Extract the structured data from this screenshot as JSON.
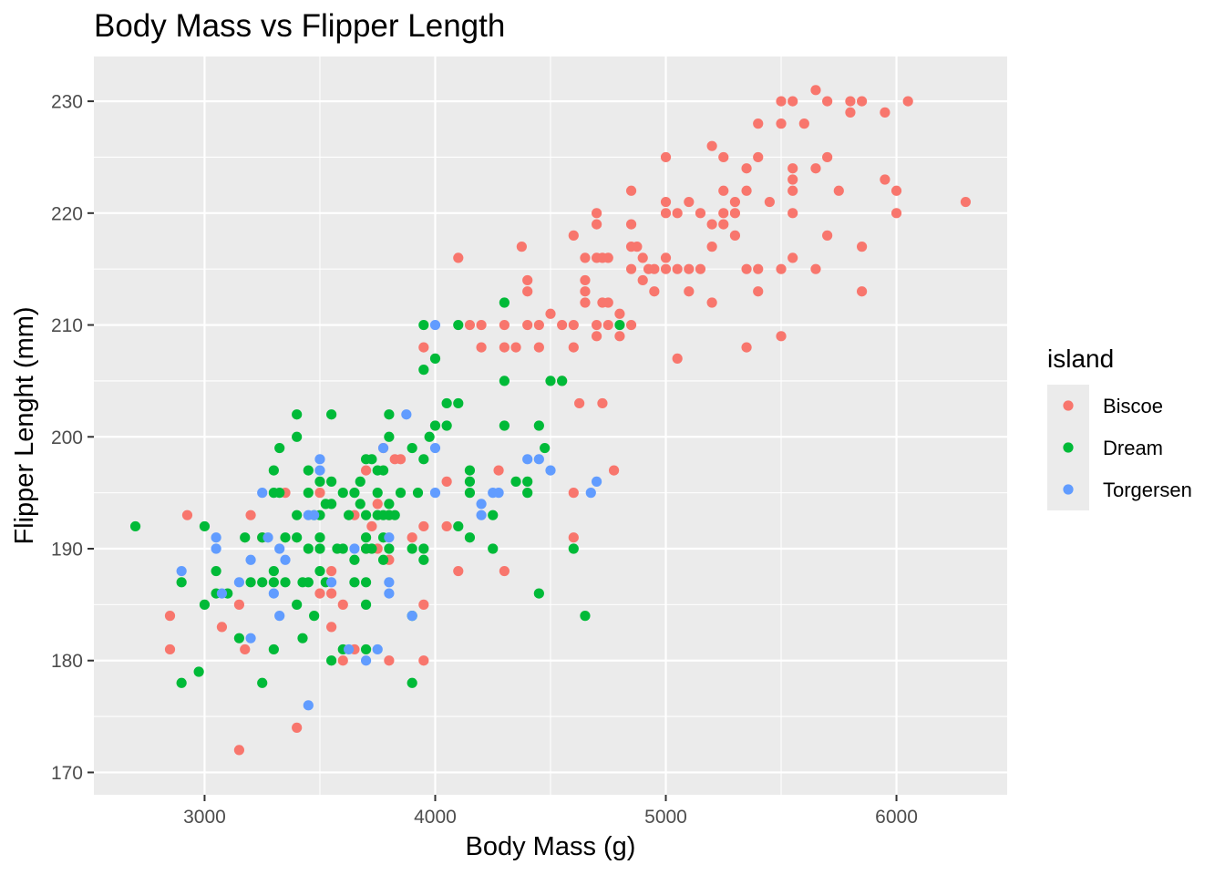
{
  "chart_data": {
    "type": "scatter",
    "title": "Body Mass vs Flipper Length",
    "xlabel": "Body Mass (g)",
    "ylabel": "Flipper Lenght (mm)",
    "xlim": [
      2520,
      6480
    ],
    "ylim": [
      168,
      234
    ],
    "xticks": [
      3000,
      4000,
      5000,
      6000
    ],
    "yticks": [
      170,
      180,
      190,
      200,
      210,
      220,
      230
    ],
    "grid": true,
    "legend": {
      "title": "island",
      "position": "right"
    },
    "series": [
      {
        "name": "Biscoe",
        "color": "#F8766D",
        "points": [
          [
            6300,
            221
          ],
          [
            6050,
            230
          ],
          [
            6000,
            222
          ],
          [
            6000,
            220
          ],
          [
            5950,
            229
          ],
          [
            5950,
            223
          ],
          [
            5850,
            230
          ],
          [
            5850,
            217
          ],
          [
            5850,
            213
          ],
          [
            5800,
            230
          ],
          [
            5800,
            229
          ],
          [
            5750,
            222
          ],
          [
            5700,
            230
          ],
          [
            5700,
            225
          ],
          [
            5700,
            218
          ],
          [
            5650,
            231
          ],
          [
            5650,
            224
          ],
          [
            5650,
            215
          ],
          [
            5600,
            228
          ],
          [
            5550,
            230
          ],
          [
            5550,
            224
          ],
          [
            5550,
            223
          ],
          [
            5550,
            222
          ],
          [
            5550,
            220
          ],
          [
            5550,
            216
          ],
          [
            5500,
            230
          ],
          [
            5500,
            228
          ],
          [
            5500,
            215
          ],
          [
            5500,
            209
          ],
          [
            5450,
            221
          ],
          [
            5400,
            228
          ],
          [
            5400,
            225
          ],
          [
            5400,
            215
          ],
          [
            5400,
            213
          ],
          [
            5350,
            224
          ],
          [
            5350,
            222
          ],
          [
            5350,
            215
          ],
          [
            5350,
            208
          ],
          [
            5300,
            221
          ],
          [
            5300,
            220
          ],
          [
            5300,
            218
          ],
          [
            5250,
            225
          ],
          [
            5250,
            222
          ],
          [
            5250,
            220
          ],
          [
            5250,
            219
          ],
          [
            5200,
            226
          ],
          [
            5200,
            219
          ],
          [
            5200,
            217
          ],
          [
            5200,
            212
          ],
          [
            5150,
            220
          ],
          [
            5150,
            215
          ],
          [
            5100,
            221
          ],
          [
            5100,
            215
          ],
          [
            5100,
            213
          ],
          [
            5050,
            220
          ],
          [
            5050,
            215
          ],
          [
            5050,
            207
          ],
          [
            5000,
            225
          ],
          [
            5000,
            221
          ],
          [
            5000,
            220
          ],
          [
            5000,
            216
          ],
          [
            5000,
            215
          ],
          [
            4950,
            215
          ],
          [
            4950,
            213
          ],
          [
            4925,
            215
          ],
          [
            4900,
            216
          ],
          [
            4900,
            214
          ],
          [
            4875,
            217
          ],
          [
            4850,
            222
          ],
          [
            4850,
            219
          ],
          [
            4850,
            217
          ],
          [
            4850,
            215
          ],
          [
            4850,
            210
          ],
          [
            4800,
            211
          ],
          [
            4800,
            209
          ],
          [
            4750,
            216
          ],
          [
            4750,
            212
          ],
          [
            4750,
            210
          ],
          [
            4725,
            216
          ],
          [
            4725,
            212
          ],
          [
            4725,
            203
          ],
          [
            4700,
            220
          ],
          [
            4700,
            219
          ],
          [
            4700,
            216
          ],
          [
            4700,
            210
          ],
          [
            4700,
            209
          ],
          [
            4650,
            216
          ],
          [
            4650,
            214
          ],
          [
            4650,
            213
          ],
          [
            4650,
            212
          ],
          [
            4625,
            203
          ],
          [
            4600,
            218
          ],
          [
            4600,
            210
          ],
          [
            4600,
            208
          ],
          [
            4600,
            191
          ],
          [
            4550,
            210
          ],
          [
            4500,
            211
          ],
          [
            4450,
            210
          ],
          [
            4450,
            208
          ],
          [
            4400,
            214
          ],
          [
            4400,
            213
          ],
          [
            4400,
            210
          ],
          [
            4375,
            217
          ],
          [
            4350,
            208
          ],
          [
            4300,
            210
          ],
          [
            4300,
            208
          ],
          [
            4300,
            188
          ],
          [
            4275,
            197
          ],
          [
            4200,
            210
          ],
          [
            4200,
            208
          ],
          [
            4150,
            210
          ],
          [
            4100,
            216
          ],
          [
            4100,
            188
          ],
          [
            4050,
            196
          ],
          [
            4050,
            192
          ],
          [
            3950,
            208
          ],
          [
            3950,
            192
          ],
          [
            3950,
            185
          ],
          [
            3950,
            180
          ],
          [
            3900,
            191
          ],
          [
            3850,
            198
          ],
          [
            3800,
            189
          ],
          [
            3800,
            180
          ],
          [
            3775,
            199
          ],
          [
            3750,
            194
          ],
          [
            3725,
            192
          ],
          [
            3700,
            190
          ],
          [
            3650,
            181
          ],
          [
            3600,
            185
          ],
          [
            3600,
            180
          ],
          [
            3550,
            188
          ],
          [
            3550,
            186
          ],
          [
            3550,
            183
          ],
          [
            3500,
            186
          ],
          [
            3350,
            195
          ],
          [
            3250,
            191
          ],
          [
            3200,
            193
          ],
          [
            3175,
            181
          ],
          [
            3150,
            185
          ],
          [
            3150,
            172
          ],
          [
            3075,
            183
          ],
          [
            2925,
            193
          ],
          [
            2850,
            184
          ],
          [
            2850,
            181
          ],
          [
            3400,
            174
          ],
          [
            4775,
            197
          ],
          [
            4550,
            205
          ],
          [
            4600,
            195
          ],
          [
            3825,
            198
          ],
          [
            3650,
            193
          ],
          [
            3800,
            193
          ],
          [
            3700,
            197
          ],
          [
            3750,
            190
          ],
          [
            3500,
            195
          ]
        ]
      },
      {
        "name": "Dream",
        "color": "#00BA38",
        "points": [
          [
            2700,
            192
          ],
          [
            2900,
            187
          ],
          [
            2900,
            178
          ],
          [
            2975,
            179
          ],
          [
            3000,
            192
          ],
          [
            3000,
            185
          ],
          [
            3050,
            188
          ],
          [
            3050,
            186
          ],
          [
            3100,
            186
          ],
          [
            3150,
            182
          ],
          [
            3175,
            191
          ],
          [
            3200,
            187
          ],
          [
            3250,
            191
          ],
          [
            3250,
            187
          ],
          [
            3250,
            178
          ],
          [
            3300,
            197
          ],
          [
            3300,
            195
          ],
          [
            3300,
            188
          ],
          [
            3300,
            187
          ],
          [
            3300,
            181
          ],
          [
            3325,
            199
          ],
          [
            3325,
            195
          ],
          [
            3350,
            191
          ],
          [
            3350,
            187
          ],
          [
            3400,
            202
          ],
          [
            3400,
            200
          ],
          [
            3400,
            193
          ],
          [
            3400,
            191
          ],
          [
            3400,
            185
          ],
          [
            3425,
            187
          ],
          [
            3425,
            182
          ],
          [
            3450,
            197
          ],
          [
            3450,
            195
          ],
          [
            3450,
            190
          ],
          [
            3450,
            187
          ],
          [
            3475,
            193
          ],
          [
            3475,
            184
          ],
          [
            3500,
            196
          ],
          [
            3500,
            193
          ],
          [
            3500,
            191
          ],
          [
            3500,
            190
          ],
          [
            3500,
            188
          ],
          [
            3525,
            194
          ],
          [
            3525,
            187
          ],
          [
            3550,
            202
          ],
          [
            3550,
            196
          ],
          [
            3550,
            194
          ],
          [
            3550,
            180
          ],
          [
            3575,
            190
          ],
          [
            3600,
            195
          ],
          [
            3600,
            190
          ],
          [
            3600,
            181
          ],
          [
            3625,
            193
          ],
          [
            3650,
            195
          ],
          [
            3650,
            189
          ],
          [
            3650,
            187
          ],
          [
            3675,
            194
          ],
          [
            3675,
            196
          ],
          [
            3700,
            198
          ],
          [
            3700,
            193
          ],
          [
            3700,
            191
          ],
          [
            3700,
            190
          ],
          [
            3700,
            187
          ],
          [
            3700,
            185
          ],
          [
            3700,
            181
          ],
          [
            3725,
            198
          ],
          [
            3725,
            190
          ],
          [
            3750,
            197
          ],
          [
            3750,
            195
          ],
          [
            3750,
            193
          ],
          [
            3775,
            197
          ],
          [
            3775,
            193
          ],
          [
            3775,
            191
          ],
          [
            3775,
            189
          ],
          [
            3800,
            202
          ],
          [
            3800,
            200
          ],
          [
            3800,
            194
          ],
          [
            3800,
            193
          ],
          [
            3800,
            190
          ],
          [
            3825,
            193
          ],
          [
            3850,
            195
          ],
          [
            3900,
            199
          ],
          [
            3900,
            190
          ],
          [
            3900,
            178
          ],
          [
            3900,
            184
          ],
          [
            3925,
            195
          ],
          [
            3950,
            210
          ],
          [
            3950,
            206
          ],
          [
            3950,
            198
          ],
          [
            3950,
            190
          ],
          [
            3950,
            189
          ],
          [
            3975,
            200
          ],
          [
            4000,
            207
          ],
          [
            4000,
            201
          ],
          [
            4050,
            203
          ],
          [
            4050,
            201
          ],
          [
            4100,
            210
          ],
          [
            4100,
            203
          ],
          [
            4100,
            192
          ],
          [
            4150,
            197
          ],
          [
            4150,
            196
          ],
          [
            4150,
            195
          ],
          [
            4150,
            191
          ],
          [
            4250,
            193
          ],
          [
            4250,
            190
          ],
          [
            4300,
            212
          ],
          [
            4300,
            205
          ],
          [
            4300,
            201
          ],
          [
            4350,
            196
          ],
          [
            4400,
            196
          ],
          [
            4400,
            195
          ],
          [
            4450,
            201
          ],
          [
            4450,
            186
          ],
          [
            4475,
            199
          ],
          [
            4500,
            205
          ],
          [
            4550,
            205
          ],
          [
            4600,
            190
          ],
          [
            4650,
            184
          ],
          [
            4800,
            210
          ]
        ]
      },
      {
        "name": "Torgersen",
        "color": "#619CFF",
        "points": [
          [
            2900,
            188
          ],
          [
            3050,
            191
          ],
          [
            3050,
            190
          ],
          [
            3075,
            186
          ],
          [
            3150,
            187
          ],
          [
            3200,
            189
          ],
          [
            3200,
            182
          ],
          [
            3250,
            195
          ],
          [
            3275,
            191
          ],
          [
            3300,
            186
          ],
          [
            3325,
            190
          ],
          [
            3325,
            184
          ],
          [
            3350,
            189
          ],
          [
            3450,
            193
          ],
          [
            3450,
            176
          ],
          [
            3475,
            193
          ],
          [
            3500,
            198
          ],
          [
            3500,
            197
          ],
          [
            3550,
            187
          ],
          [
            3625,
            181
          ],
          [
            3650,
            190
          ],
          [
            3700,
            180
          ],
          [
            3750,
            181
          ],
          [
            3800,
            191
          ],
          [
            3800,
            187
          ],
          [
            3800,
            186
          ],
          [
            3775,
            199
          ],
          [
            3875,
            202
          ],
          [
            3900,
            184
          ],
          [
            4000,
            210
          ],
          [
            4000,
            199
          ],
          [
            4000,
            195
          ],
          [
            4200,
            194
          ],
          [
            4200,
            193
          ],
          [
            4250,
            195
          ],
          [
            4275,
            195
          ],
          [
            4400,
            198
          ],
          [
            4450,
            198
          ],
          [
            4500,
            197
          ],
          [
            4675,
            195
          ],
          [
            4700,
            196
          ]
        ]
      }
    ]
  }
}
